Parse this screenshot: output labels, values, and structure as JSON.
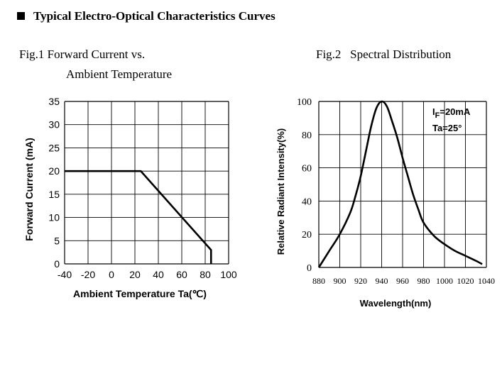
{
  "section_title": "Typical Electro-Optical Characteristics Curves",
  "fig1": {
    "caption_line1": "Fig.1 Forward Current vs.",
    "caption_line2": "Ambient Temperature"
  },
  "fig2": {
    "caption": "Fig.2   Spectral Distribution",
    "annotation_sub": "F",
    "annotation_rest": "=20mA",
    "annotation_prefix": "I",
    "annotation_line2": "Ta=25°"
  },
  "chart_data": [
    {
      "type": "line",
      "title": "Fig.1 Forward Current vs. Ambient Temperature",
      "xlabel": "Ambient Temperature Ta(℃)",
      "ylabel": "Forward Current (mA)",
      "xlim": [
        -40,
        100
      ],
      "ylim": [
        0,
        35
      ],
      "xticks": [
        -40,
        -20,
        0,
        20,
        40,
        60,
        80,
        100
      ],
      "yticks": [
        0,
        5,
        10,
        15,
        20,
        25,
        30,
        35
      ],
      "xtick_labels": [
        "-40",
        "-20",
        "0",
        "20",
        "40",
        "60",
        "80",
        "100"
      ],
      "ytick_labels": [
        "0",
        "5",
        "10",
        "15",
        "20",
        "25",
        "30",
        "35"
      ],
      "grid": true,
      "series": [
        {
          "name": "Forward Current",
          "x": [
            -40,
            25,
            85,
            85
          ],
          "y": [
            20,
            20,
            3,
            0
          ]
        }
      ]
    },
    {
      "type": "line",
      "title": "Fig.2 Spectral Distribution",
      "xlabel": "Wavelength(nm)",
      "ylabel": "Relative Radiant Intensity(%)",
      "xlim": [
        880,
        1040
      ],
      "ylim": [
        0,
        100
      ],
      "xticks": [
        880,
        900,
        920,
        940,
        960,
        980,
        1000,
        1020,
        1040
      ],
      "yticks": [
        0,
        20,
        40,
        60,
        80,
        100
      ],
      "xtick_labels": [
        "880",
        "900",
        "920",
        "940",
        "960",
        "980",
        "1000",
        "1020",
        "1040"
      ],
      "ytick_labels": [
        "0",
        "20",
        "40",
        "60",
        "80",
        "100"
      ],
      "grid": true,
      "series": [
        {
          "name": "Relative Radiant Intensity",
          "x": [
            880,
            890,
            900,
            910,
            915,
            920,
            925,
            930,
            935,
            940,
            945,
            950,
            955,
            960,
            965,
            970,
            975,
            980,
            990,
            1000,
            1010,
            1020,
            1030,
            1036
          ],
          "y": [
            0,
            10,
            20,
            33,
            43,
            55,
            70,
            85,
            96,
            100,
            97,
            88,
            78,
            66,
            55,
            44,
            35,
            27,
            19,
            14,
            10,
            7,
            4,
            2
          ]
        }
      ]
    }
  ]
}
